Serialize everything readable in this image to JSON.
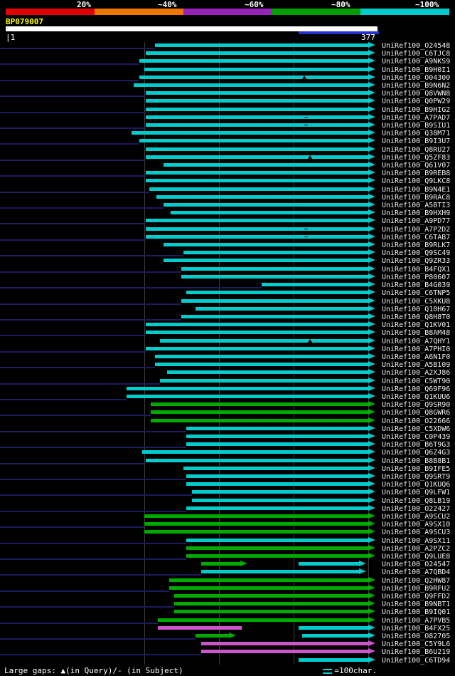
{
  "scale_legend": {
    "labels": [
      "20%",
      "~40%",
      "~60%",
      "~80%",
      "~100%"
    ],
    "colors": [
      "#e00000",
      "#ee7700",
      "#9922bb",
      "#00a000",
      "#00cccc"
    ]
  },
  "query": {
    "name": "BP079007",
    "bar_color": "#ffffff",
    "marked_region_color": "#2233cc"
  },
  "ruler": {
    "start_label": "|1",
    "end_label": "377"
  },
  "footer": {
    "gaps_note": "Large gaps: ▲(in Query)/- (in Subject)",
    "scale_note": "=100char."
  },
  "colors": {
    "c": "#00cccc",
    "g": "#00aa00",
    "m": "#cc55cc",
    "leader": "#1b1b60",
    "grid": "#3c3c3c",
    "marker": "#000000"
  },
  "chart_data": {
    "type": "bar",
    "orientation": "horizontal",
    "title": "BLAST hit distribution overview for query BP079007",
    "x_axis": {
      "sequence_start": 1,
      "sequence_end": 377
    },
    "units": "px",
    "hits": [
      {
        "label": "UniRef100_O24548",
        "ld": 1,
        "seg": [
          [
            218,
            518,
            "c",
            1
          ]
        ]
      },
      {
        "label": "UniRef100_C6TJC8",
        "ld": 0,
        "seg": [
          [
            205,
            518,
            "c",
            1
          ]
        ]
      },
      {
        "label": "UniRef100_A9NKS9",
        "ld": 1,
        "seg": [
          [
            196,
            518,
            "c",
            1
          ]
        ]
      },
      {
        "label": "UniRef100_B9H0I1",
        "ld": 0,
        "seg": [
          [
            203,
            518,
            "c",
            1
          ]
        ]
      },
      {
        "label": "UniRef100_O04300",
        "ld": 1,
        "seg": [
          [
            196,
            518,
            "c",
            1
          ]
        ],
        "mk": [
          [
            428,
            "q"
          ]
        ]
      },
      {
        "label": "UniRef100_B9N6N2",
        "ld": 0,
        "seg": [
          [
            188,
            518,
            "c",
            1
          ]
        ]
      },
      {
        "label": "UniRef100_Q8VWN8",
        "ld": 1,
        "seg": [
          [
            205,
            518,
            "c",
            1
          ]
        ]
      },
      {
        "label": "UniRef100_Q0PW29",
        "ld": 0,
        "seg": [
          [
            205,
            518,
            "c",
            1
          ]
        ]
      },
      {
        "label": "UniRef100_B9HIG2",
        "ld": 1,
        "seg": [
          [
            205,
            518,
            "c",
            1
          ]
        ]
      },
      {
        "label": "UniRef100_A7PAD7",
        "ld": 0,
        "seg": [
          [
            205,
            518,
            "c",
            1
          ]
        ],
        "mk": [
          [
            428,
            "s"
          ]
        ]
      },
      {
        "label": "UniRef100_B9SIU1",
        "ld": 1,
        "seg": [
          [
            205,
            518,
            "c",
            1
          ]
        ],
        "mk": [
          [
            428,
            "s"
          ]
        ]
      },
      {
        "label": "UniRef100_Q38M71",
        "ld": 0,
        "seg": [
          [
            185,
            518,
            "c",
            1
          ]
        ]
      },
      {
        "label": "UniRef100_B9I3U7",
        "ld": 1,
        "seg": [
          [
            196,
            518,
            "c",
            1
          ]
        ]
      },
      {
        "label": "UniRef100_Q8RU27",
        "ld": 0,
        "seg": [
          [
            205,
            518,
            "c",
            1
          ]
        ]
      },
      {
        "label": "UniRef100_Q5ZF83",
        "ld": 1,
        "seg": [
          [
            205,
            518,
            "c",
            1
          ]
        ],
        "mk": [
          [
            436,
            "q"
          ]
        ]
      },
      {
        "label": "UniRef100_Q61V07",
        "ld": 0,
        "seg": [
          [
            230,
            518,
            "c",
            1
          ]
        ]
      },
      {
        "label": "UniRef100_B9REB8",
        "ld": 1,
        "seg": [
          [
            205,
            518,
            "c",
            1
          ]
        ]
      },
      {
        "label": "UniRef100_Q9LKC8",
        "ld": 0,
        "seg": [
          [
            205,
            518,
            "c",
            1
          ]
        ]
      },
      {
        "label": "UniRef100_B9N4E1",
        "ld": 1,
        "seg": [
          [
            210,
            518,
            "c",
            1
          ]
        ]
      },
      {
        "label": "UniRef100_B9RAC8",
        "ld": 0,
        "seg": [
          [
            220,
            518,
            "c",
            1
          ]
        ]
      },
      {
        "label": "UniRef100_A5BTI3",
        "ld": 1,
        "seg": [
          [
            230,
            518,
            "c",
            1
          ]
        ]
      },
      {
        "label": "UniRef100_B9HXH9",
        "ld": 0,
        "seg": [
          [
            240,
            518,
            "c",
            1
          ]
        ]
      },
      {
        "label": "UniRef100_A9PD77",
        "ld": 1,
        "seg": [
          [
            205,
            518,
            "c",
            1
          ]
        ]
      },
      {
        "label": "UniRef100_A7P2D2",
        "ld": 0,
        "seg": [
          [
            205,
            518,
            "c",
            1
          ]
        ],
        "mk": [
          [
            428,
            "s"
          ]
        ]
      },
      {
        "label": "UniRef100_C6TAB7",
        "ld": 1,
        "seg": [
          [
            205,
            518,
            "c",
            1
          ]
        ],
        "mk": [
          [
            428,
            "s"
          ]
        ]
      },
      {
        "label": "UniRef100_B9RLK7",
        "ld": 0,
        "seg": [
          [
            230,
            518,
            "c",
            1
          ]
        ]
      },
      {
        "label": "UniRef100_Q9SC49",
        "ld": 1,
        "seg": [
          [
            258,
            518,
            "c",
            1
          ]
        ]
      },
      {
        "label": "UniRef100_Q9ZR33",
        "ld": 0,
        "seg": [
          [
            230,
            518,
            "c",
            1
          ]
        ]
      },
      {
        "label": "UniRef100_B4FQX1",
        "ld": 1,
        "seg": [
          [
            255,
            518,
            "c",
            1
          ]
        ]
      },
      {
        "label": "UniRef100_P80607",
        "ld": 0,
        "seg": [
          [
            255,
            518,
            "c",
            1
          ]
        ]
      },
      {
        "label": "UniRef100_B4G039",
        "ld": 1,
        "seg": [
          [
            368,
            518,
            "c",
            1
          ]
        ]
      },
      {
        "label": "UniRef100_C6TNP5",
        "ld": 0,
        "seg": [
          [
            262,
            518,
            "c",
            1
          ]
        ]
      },
      {
        "label": "UniRef100_C5XKU8",
        "ld": 1,
        "seg": [
          [
            255,
            518,
            "c",
            1
          ]
        ]
      },
      {
        "label": "UniRef100_Q10H67",
        "ld": 0,
        "seg": [
          [
            275,
            518,
            "c",
            1
          ]
        ]
      },
      {
        "label": "UniRef100_Q8H8T0",
        "ld": 1,
        "seg": [
          [
            255,
            518,
            "c",
            1
          ]
        ]
      },
      {
        "label": "UniRef100_Q1KV01",
        "ld": 0,
        "seg": [
          [
            205,
            518,
            "c",
            1
          ]
        ]
      },
      {
        "label": "UniRef100_B8AM48",
        "ld": 1,
        "seg": [
          [
            205,
            518,
            "c",
            1
          ]
        ]
      },
      {
        "label": "UniRef100_A7QHY1",
        "ld": 0,
        "seg": [
          [
            225,
            518,
            "c",
            1
          ]
        ],
        "mk": [
          [
            436,
            "q"
          ]
        ]
      },
      {
        "label": "UniRef100_A7PHI0",
        "ld": 1,
        "seg": [
          [
            205,
            518,
            "c",
            1
          ]
        ]
      },
      {
        "label": "UniRef100_A6N1F0",
        "ld": 0,
        "seg": [
          [
            218,
            518,
            "c",
            1
          ]
        ]
      },
      {
        "label": "UniRef100_A5B109",
        "ld": 1,
        "seg": [
          [
            218,
            518,
            "c",
            1
          ]
        ]
      },
      {
        "label": "UniRef100_A2XJ86",
        "ld": 0,
        "seg": [
          [
            235,
            518,
            "c",
            1
          ]
        ]
      },
      {
        "label": "UniRef100_C5WT90",
        "ld": 1,
        "seg": [
          [
            225,
            518,
            "c",
            1
          ]
        ]
      },
      {
        "label": "UniRef100_Q69F96",
        "ld": 0,
        "seg": [
          [
            178,
            518,
            "c",
            1
          ]
        ]
      },
      {
        "label": "UniRef100_Q1KUU6",
        "ld": 1,
        "seg": [
          [
            178,
            518,
            "c",
            1
          ]
        ]
      },
      {
        "label": "UniRef100_Q9SR90",
        "ld": 0,
        "seg": [
          [
            212,
            518,
            "g",
            1
          ]
        ]
      },
      {
        "label": "UniRef100_Q8GWR6",
        "ld": 1,
        "seg": [
          [
            212,
            518,
            "g",
            1
          ]
        ]
      },
      {
        "label": "UniRef100_O22666",
        "ld": 0,
        "seg": [
          [
            212,
            518,
            "g",
            1
          ]
        ]
      },
      {
        "label": "UniRef100_C5XDW6",
        "ld": 1,
        "seg": [
          [
            262,
            518,
            "c",
            1
          ]
        ]
      },
      {
        "label": "UniRef100_C0P439",
        "ld": 0,
        "seg": [
          [
            262,
            518,
            "c",
            1
          ]
        ]
      },
      {
        "label": "UniRef100_B6T9G3",
        "ld": 1,
        "seg": [
          [
            262,
            518,
            "c",
            1
          ]
        ]
      },
      {
        "label": "UniRef100_Q6Z4G3",
        "ld": 0,
        "seg": [
          [
            200,
            518,
            "c",
            1
          ]
        ]
      },
      {
        "label": "UniRef100_B8B8B1",
        "ld": 1,
        "seg": [
          [
            205,
            518,
            "c",
            1
          ]
        ]
      },
      {
        "label": "UniRef100_B9IFE5",
        "ld": 0,
        "seg": [
          [
            258,
            518,
            "c",
            1
          ]
        ]
      },
      {
        "label": "UniRef100_Q9SRT9",
        "ld": 1,
        "seg": [
          [
            262,
            518,
            "c",
            1
          ]
        ]
      },
      {
        "label": "UniRef100_Q1KUQ6",
        "ld": 0,
        "seg": [
          [
            262,
            518,
            "c",
            1
          ]
        ]
      },
      {
        "label": "UniRef100_Q9LFW1",
        "ld": 1,
        "seg": [
          [
            270,
            518,
            "c",
            1
          ]
        ]
      },
      {
        "label": "UniRef100_Q8LB19",
        "ld": 0,
        "seg": [
          [
            270,
            518,
            "c",
            1
          ]
        ]
      },
      {
        "label": "UniRef100_O22427",
        "ld": 1,
        "seg": [
          [
            262,
            518,
            "c",
            1
          ]
        ]
      },
      {
        "label": "UniRef100_A9SCU2",
        "ld": 0,
        "seg": [
          [
            203,
            518,
            "g",
            1
          ]
        ]
      },
      {
        "label": "UniRef100_A9SX10",
        "ld": 1,
        "seg": [
          [
            203,
            518,
            "g",
            1
          ]
        ]
      },
      {
        "label": "UniRef100_A9SCU3",
        "ld": 0,
        "seg": [
          [
            203,
            518,
            "g",
            1
          ]
        ]
      },
      {
        "label": "UniRef100_A9SX11",
        "ld": 1,
        "seg": [
          [
            262,
            518,
            "c",
            1
          ]
        ]
      },
      {
        "label": "UniRef100_A2PZC2",
        "ld": 0,
        "seg": [
          [
            262,
            518,
            "g",
            1
          ]
        ]
      },
      {
        "label": "UniRef100_Q9LUE8",
        "ld": 1,
        "seg": [
          [
            262,
            518,
            "g",
            1
          ]
        ]
      },
      {
        "label": "UniRef100_O24547",
        "ld": 0,
        "seg": [
          [
            283,
            338,
            "g",
            1
          ],
          [
            420,
            505,
            "c",
            1
          ]
        ]
      },
      {
        "label": "UniRef100_A7QBD4",
        "ld": 1,
        "seg": [
          [
            283,
            505,
            "c",
            1
          ]
        ]
      },
      {
        "label": "UniRef100_Q2HW87",
        "ld": 0,
        "seg": [
          [
            238,
            518,
            "g",
            1
          ]
        ]
      },
      {
        "label": "UniRef100_B9RFU2",
        "ld": 1,
        "seg": [
          [
            238,
            518,
            "g",
            1
          ]
        ]
      },
      {
        "label": "UniRef100_Q9FFD2",
        "ld": 0,
        "seg": [
          [
            245,
            518,
            "g",
            1
          ]
        ]
      },
      {
        "label": "UniRef100_B9NBT1",
        "ld": 1,
        "seg": [
          [
            245,
            518,
            "g",
            1
          ]
        ]
      },
      {
        "label": "UniRef100_B9IQ01",
        "ld": 0,
        "seg": [
          [
            245,
            518,
            "g",
            1
          ]
        ]
      },
      {
        "label": "UniRef100_A7PVB5",
        "ld": 1,
        "seg": [
          [
            222,
            518,
            "g",
            1
          ]
        ]
      },
      {
        "label": "UniRef100_B4FX25",
        "ld": 0,
        "seg": [
          [
            222,
            340,
            "m",
            0
          ],
          [
            420,
            518,
            "c",
            1
          ]
        ]
      },
      {
        "label": "UniRef100_O82705",
        "ld": 1,
        "seg": [
          [
            275,
            322,
            "g",
            1
          ],
          [
            425,
            518,
            "c",
            1
          ]
        ]
      },
      {
        "label": "UniRef100_C5Y9L6",
        "ld": 0,
        "seg": [
          [
            283,
            518,
            "m",
            1
          ]
        ]
      },
      {
        "label": "UniRef100_B6U219",
        "ld": 1,
        "seg": [
          [
            283,
            518,
            "m",
            1
          ]
        ]
      },
      {
        "label": "UniRef100_C6TD94",
        "ld": 0,
        "seg": [
          [
            420,
            518,
            "c",
            1
          ]
        ]
      }
    ]
  }
}
